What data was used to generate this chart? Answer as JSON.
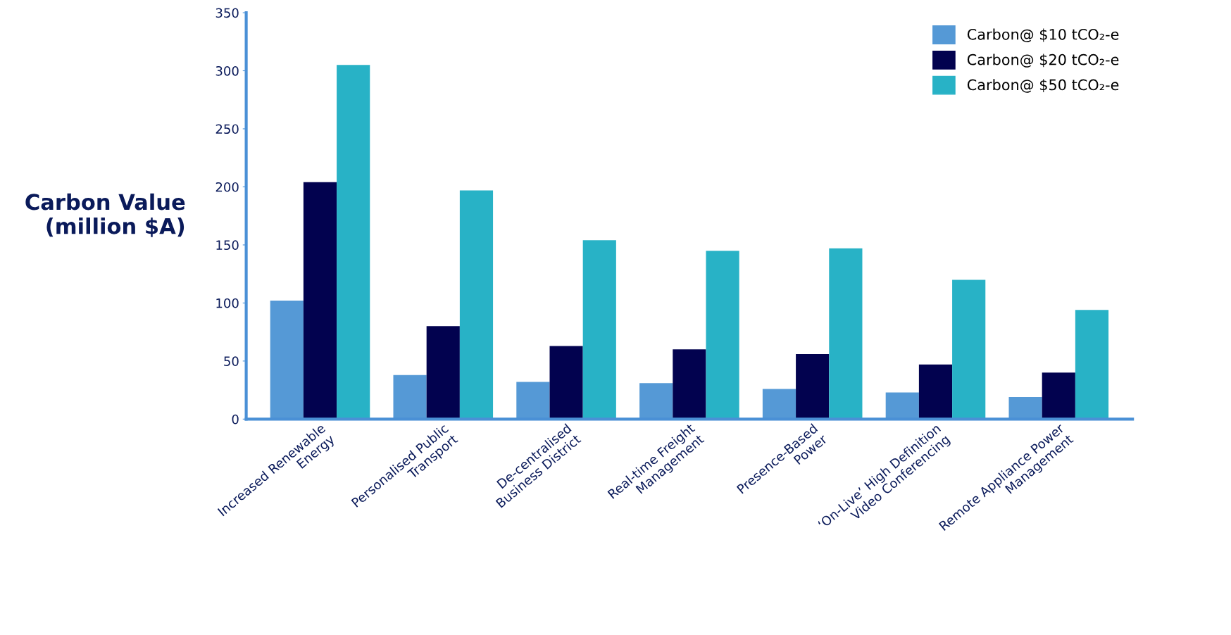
{
  "chart_data": {
    "type": "bar",
    "ylabel": "Carbon Value\n(million $A)",
    "categories": [
      "Increased Renewable\nEnergy",
      "Personalised Public\nTransport",
      "De-centralised\nBusiness District",
      "Real-time Freight\nManagement",
      "Presence-Based\nPower",
      "‘On-Live’ High Definition\nVideo Conferencing",
      "Remote Appliance Power\nManagement"
    ],
    "series": [
      {
        "name": "Carbon@ $10 tCO₂-e",
        "color": "#5599d6",
        "values": [
          102,
          38,
          32,
          31,
          26,
          23,
          19
        ]
      },
      {
        "name": "Carbon@ $20 tCO₂-e",
        "color": "#02024f",
        "values": [
          204,
          80,
          63,
          60,
          56,
          47,
          40
        ]
      },
      {
        "name": "Carbon@ $50 tCO₂-e",
        "color": "#28b2c6",
        "values": [
          305,
          197,
          154,
          145,
          147,
          120,
          94
        ]
      }
    ],
    "ylim": [
      0,
      350
    ],
    "yticks": [
      0,
      50,
      100,
      150,
      200,
      250,
      300,
      350
    ],
    "grid": false,
    "legend": "top right"
  }
}
